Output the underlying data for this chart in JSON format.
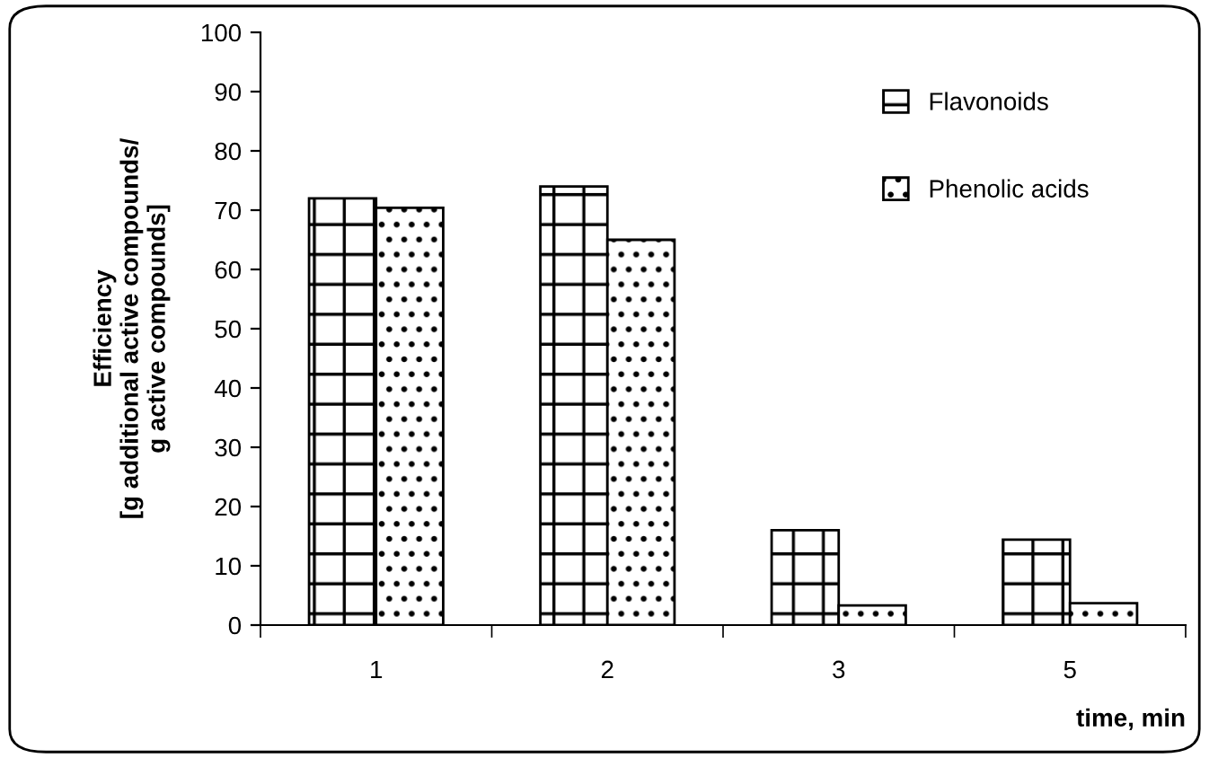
{
  "chart_data": {
    "type": "bar",
    "ylabel": "Efficiency\n[g additional active compounds/\ng active compounds]",
    "xlabel": "time, min",
    "categories": [
      "1",
      "2",
      "3",
      "5"
    ],
    "series": [
      {
        "name": "Flavonoids",
        "color": "#000000",
        "values": [
          72,
          74,
          16,
          14.4
        ]
      },
      {
        "name": "Phenolic acids",
        "color": "#000000",
        "values": [
          70.4,
          65,
          3.3,
          3.7
        ]
      }
    ],
    "ylim": [
      0,
      100
    ],
    "yticks": [
      0,
      10,
      20,
      30,
      40,
      50,
      60,
      70,
      80,
      90,
      100
    ],
    "grid": false,
    "legend": "top right"
  }
}
